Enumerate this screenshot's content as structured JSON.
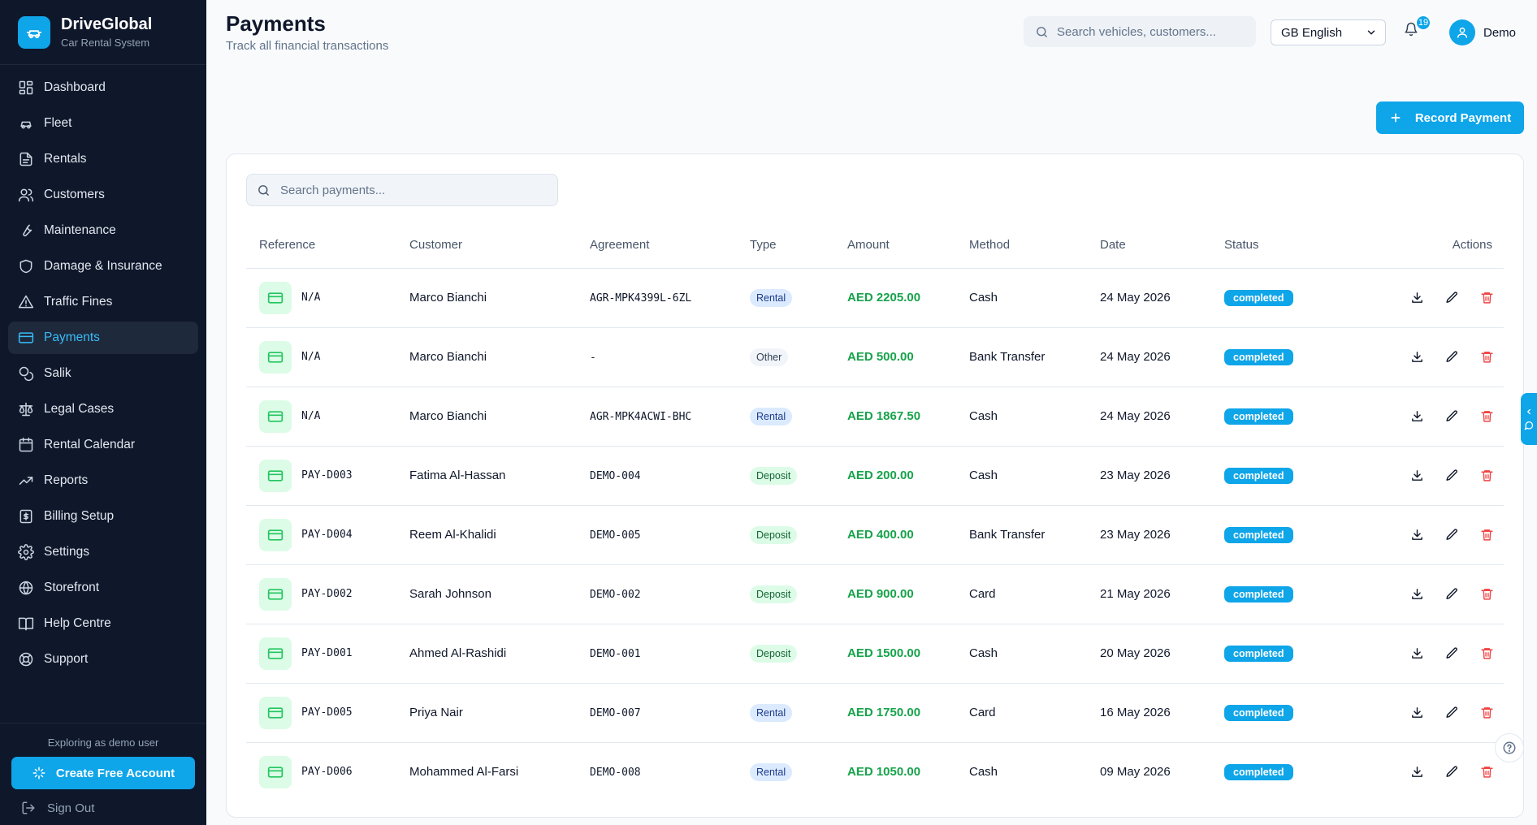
{
  "brand": {
    "name": "DriveGlobal",
    "subtitle": "Car Rental System",
    "accent": "#0ea5e9"
  },
  "sidebar": {
    "items": [
      {
        "label": "Dashboard",
        "icon": "dashboard-icon"
      },
      {
        "label": "Fleet",
        "icon": "car-icon"
      },
      {
        "label": "Rentals",
        "icon": "document-icon"
      },
      {
        "label": "Customers",
        "icon": "users-icon"
      },
      {
        "label": "Maintenance",
        "icon": "wrench-icon"
      },
      {
        "label": "Damage & Insurance",
        "icon": "shield-icon"
      },
      {
        "label": "Traffic Fines",
        "icon": "warning-icon"
      },
      {
        "label": "Payments",
        "icon": "credit-card-icon",
        "active": true
      },
      {
        "label": "Salik",
        "icon": "coins-icon"
      },
      {
        "label": "Legal Cases",
        "icon": "scale-icon"
      },
      {
        "label": "Rental Calendar",
        "icon": "calendar-icon"
      },
      {
        "label": "Reports",
        "icon": "trending-up-icon"
      },
      {
        "label": "Billing Setup",
        "icon": "receipt-icon"
      },
      {
        "label": "Settings",
        "icon": "gear-icon"
      },
      {
        "label": "Storefront",
        "icon": "globe-icon"
      },
      {
        "label": "Help Centre",
        "icon": "book-icon"
      },
      {
        "label": "Support",
        "icon": "lifebuoy-icon"
      }
    ],
    "demo_note": "Exploring as demo user",
    "create_account": "Create Free Account",
    "sign_out": "Sign Out"
  },
  "header": {
    "title": "Payments",
    "subtitle": "Track all financial transactions",
    "search_placeholder": "Search vehicles, customers...",
    "language": "GB English",
    "notification_count": "19",
    "user_name": "Demo"
  },
  "actions": {
    "record_payment": "Record Payment"
  },
  "payments": {
    "search_placeholder": "Search payments...",
    "columns": [
      "Reference",
      "Customer",
      "Agreement",
      "Type",
      "Amount",
      "Method",
      "Date",
      "Status",
      "Actions"
    ],
    "rows": [
      {
        "reference": "N/A",
        "customer": "Marco Bianchi",
        "agreement": "AGR-MPK4399L-6ZL",
        "type": "Rental",
        "amount": "AED 2205.00",
        "method": "Cash",
        "date": "24 May 2026",
        "status": "completed"
      },
      {
        "reference": "N/A",
        "customer": "Marco Bianchi",
        "agreement": "-",
        "type": "Other",
        "amount": "AED 500.00",
        "method": "Bank Transfer",
        "date": "24 May 2026",
        "status": "completed"
      },
      {
        "reference": "N/A",
        "customer": "Marco Bianchi",
        "agreement": "AGR-MPK4ACWI-BHC",
        "type": "Rental",
        "amount": "AED 1867.50",
        "method": "Cash",
        "date": "24 May 2026",
        "status": "completed"
      },
      {
        "reference": "PAY-D003",
        "customer": "Fatima Al-Hassan",
        "agreement": "DEMO-004",
        "type": "Deposit",
        "amount": "AED 200.00",
        "method": "Cash",
        "date": "23 May 2026",
        "status": "completed"
      },
      {
        "reference": "PAY-D004",
        "customer": "Reem Al-Khalidi",
        "agreement": "DEMO-005",
        "type": "Deposit",
        "amount": "AED 400.00",
        "method": "Bank Transfer",
        "date": "23 May 2026",
        "status": "completed"
      },
      {
        "reference": "PAY-D002",
        "customer": "Sarah Johnson",
        "agreement": "DEMO-002",
        "type": "Deposit",
        "amount": "AED 900.00",
        "method": "Card",
        "date": "21 May 2026",
        "status": "completed"
      },
      {
        "reference": "PAY-D001",
        "customer": "Ahmed Al-Rashidi",
        "agreement": "DEMO-001",
        "type": "Deposit",
        "amount": "AED 1500.00",
        "method": "Cash",
        "date": "20 May 2026",
        "status": "completed"
      },
      {
        "reference": "PAY-D005",
        "customer": "Priya Nair",
        "agreement": "DEMO-007",
        "type": "Rental",
        "amount": "AED 1750.00",
        "method": "Card",
        "date": "16 May 2026",
        "status": "completed"
      },
      {
        "reference": "PAY-D006",
        "customer": "Mohammed Al-Farsi",
        "agreement": "DEMO-008",
        "type": "Rental",
        "amount": "AED 1050.00",
        "method": "Cash",
        "date": "09 May 2026",
        "status": "completed"
      }
    ]
  }
}
